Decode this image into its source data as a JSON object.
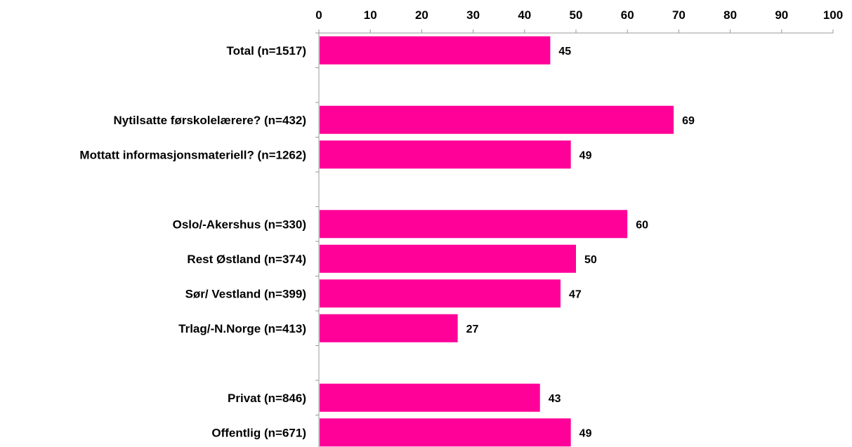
{
  "chart_data": {
    "type": "bar",
    "orientation": "horizontal",
    "xlim": [
      0,
      100
    ],
    "ticks": [
      0,
      10,
      20,
      30,
      40,
      50,
      60,
      70,
      80,
      90,
      100
    ],
    "axis_position": "top",
    "grid": false,
    "bar_color": "#FF0099",
    "rows": [
      {
        "label": "Total (n=1517)",
        "value": 45
      },
      {
        "label": "",
        "value": null
      },
      {
        "label": "Nytilsatte førskolelærere? (n=432)",
        "value": 69
      },
      {
        "label": "Mottatt informasjonsmateriell? (n=1262)",
        "value": 49
      },
      {
        "label": "",
        "value": null
      },
      {
        "label": "Oslo/-Akershus (n=330)",
        "value": 60
      },
      {
        "label": "Rest Østland (n=374)",
        "value": 50
      },
      {
        "label": "Sør/ Vestland (n=399)",
        "value": 47
      },
      {
        "label": "Trlag/-N.Norge (n=413)",
        "value": 27
      },
      {
        "label": "",
        "value": null
      },
      {
        "label": "Privat (n=846)",
        "value": 43
      },
      {
        "label": "Offentlig (n=671)",
        "value": 49
      }
    ]
  }
}
